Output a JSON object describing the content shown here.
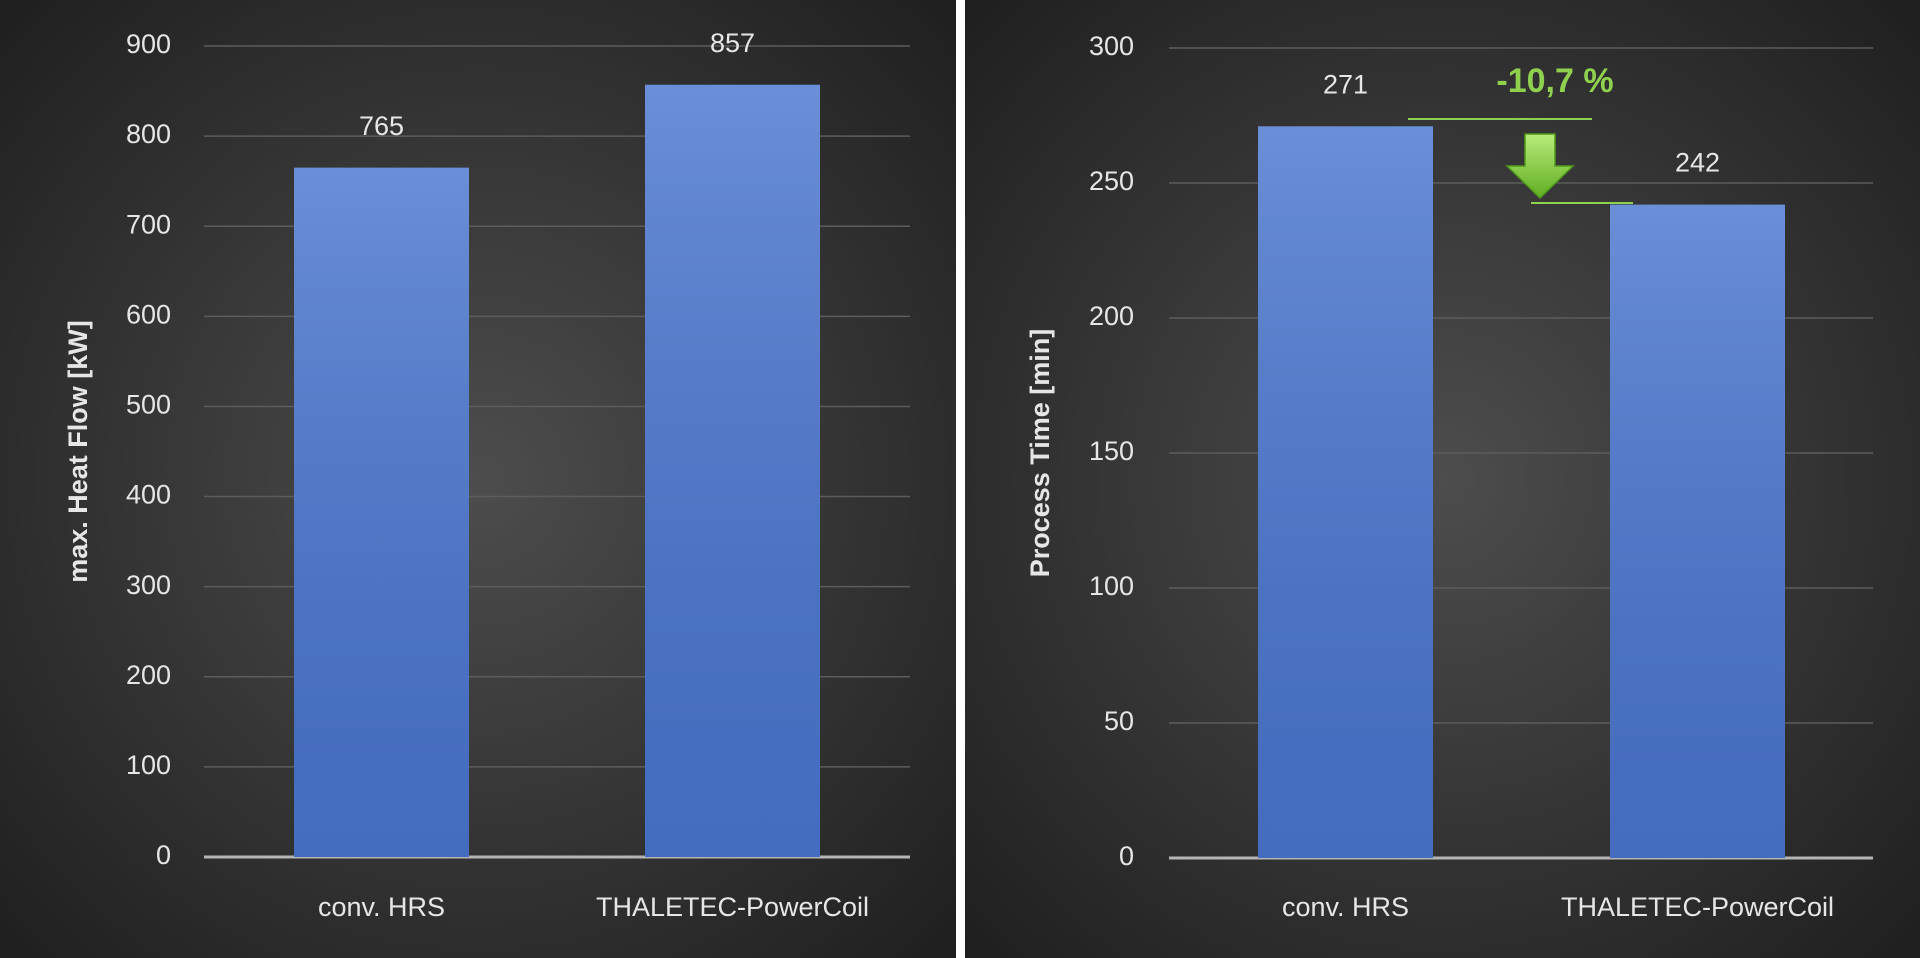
{
  "chart_data": [
    {
      "type": "bar",
      "y_label": "max. Heat Flow [kW]",
      "categories": [
        "conv. HRS",
        "THALETEC-PowerCoil"
      ],
      "values": [
        765,
        857
      ],
      "color": "#4a76d0",
      "ylim": [
        0,
        900
      ],
      "yticks": [
        0,
        100,
        200,
        300,
        400,
        500,
        600,
        700,
        800,
        900
      ],
      "grid": true
    },
    {
      "type": "bar",
      "y_label": "Process Time [min]",
      "categories": [
        "conv. HRS",
        "THALETEC-PowerCoil"
      ],
      "values": [
        271,
        242
      ],
      "color": "#4a76d0",
      "ylim": [
        0,
        300
      ],
      "yticks": [
        0,
        50,
        100,
        150,
        200,
        250,
        300
      ],
      "grid": true,
      "annotation": "-10,7 %",
      "annotation_color": "#8fd14f"
    }
  ]
}
